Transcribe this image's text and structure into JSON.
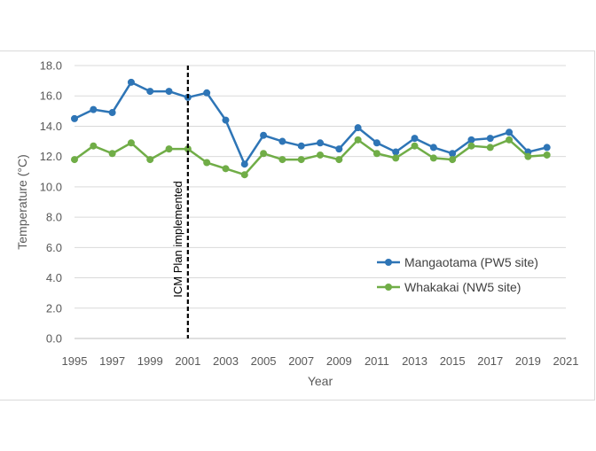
{
  "chart_data": {
    "type": "line",
    "title": "",
    "xlabel": "Year",
    "ylabel": "Temperature (°C)",
    "xlim": [
      1995,
      2021
    ],
    "ylim": [
      0,
      18
    ],
    "x_ticks": [
      "1995",
      "1997",
      "1999",
      "2001",
      "2003",
      "2005",
      "2007",
      "2009",
      "2011",
      "2013",
      "2015",
      "2017",
      "2019",
      "2021"
    ],
    "y_ticks": [
      "0.0",
      "2.0",
      "4.0",
      "6.0",
      "8.0",
      "10.0",
      "12.0",
      "14.0",
      "16.0",
      "18.0"
    ],
    "x": [
      1995,
      1996,
      1997,
      1998,
      1999,
      2000,
      2001,
      2002,
      2003,
      2004,
      2005,
      2006,
      2007,
      2008,
      2009,
      2010,
      2011,
      2012,
      2013,
      2014,
      2015,
      2016,
      2017,
      2018,
      2019,
      2020
    ],
    "series": [
      {
        "name": "Mangaotama (PW5 site)",
        "color": "#2e75b6",
        "values": [
          14.5,
          15.1,
          14.9,
          16.9,
          16.3,
          16.3,
          15.9,
          16.2,
          14.4,
          11.5,
          13.4,
          13.0,
          12.7,
          12.9,
          12.5,
          13.9,
          12.9,
          12.3,
          13.2,
          12.6,
          12.2,
          13.1,
          13.2,
          13.6,
          12.3,
          12.6
        ]
      },
      {
        "name": "Whakakai (NW5 site)",
        "color": "#70ad47",
        "values": [
          11.8,
          12.7,
          12.2,
          12.9,
          11.8,
          12.5,
          12.5,
          11.6,
          11.2,
          10.8,
          12.2,
          11.8,
          11.8,
          12.1,
          11.8,
          13.1,
          12.2,
          11.9,
          12.7,
          11.9,
          11.8,
          12.7,
          12.6,
          13.1,
          12.0,
          12.1
        ]
      }
    ],
    "annotation": {
      "label": "ICM Plan implemented",
      "x": 2001
    },
    "legend_position": "right"
  }
}
